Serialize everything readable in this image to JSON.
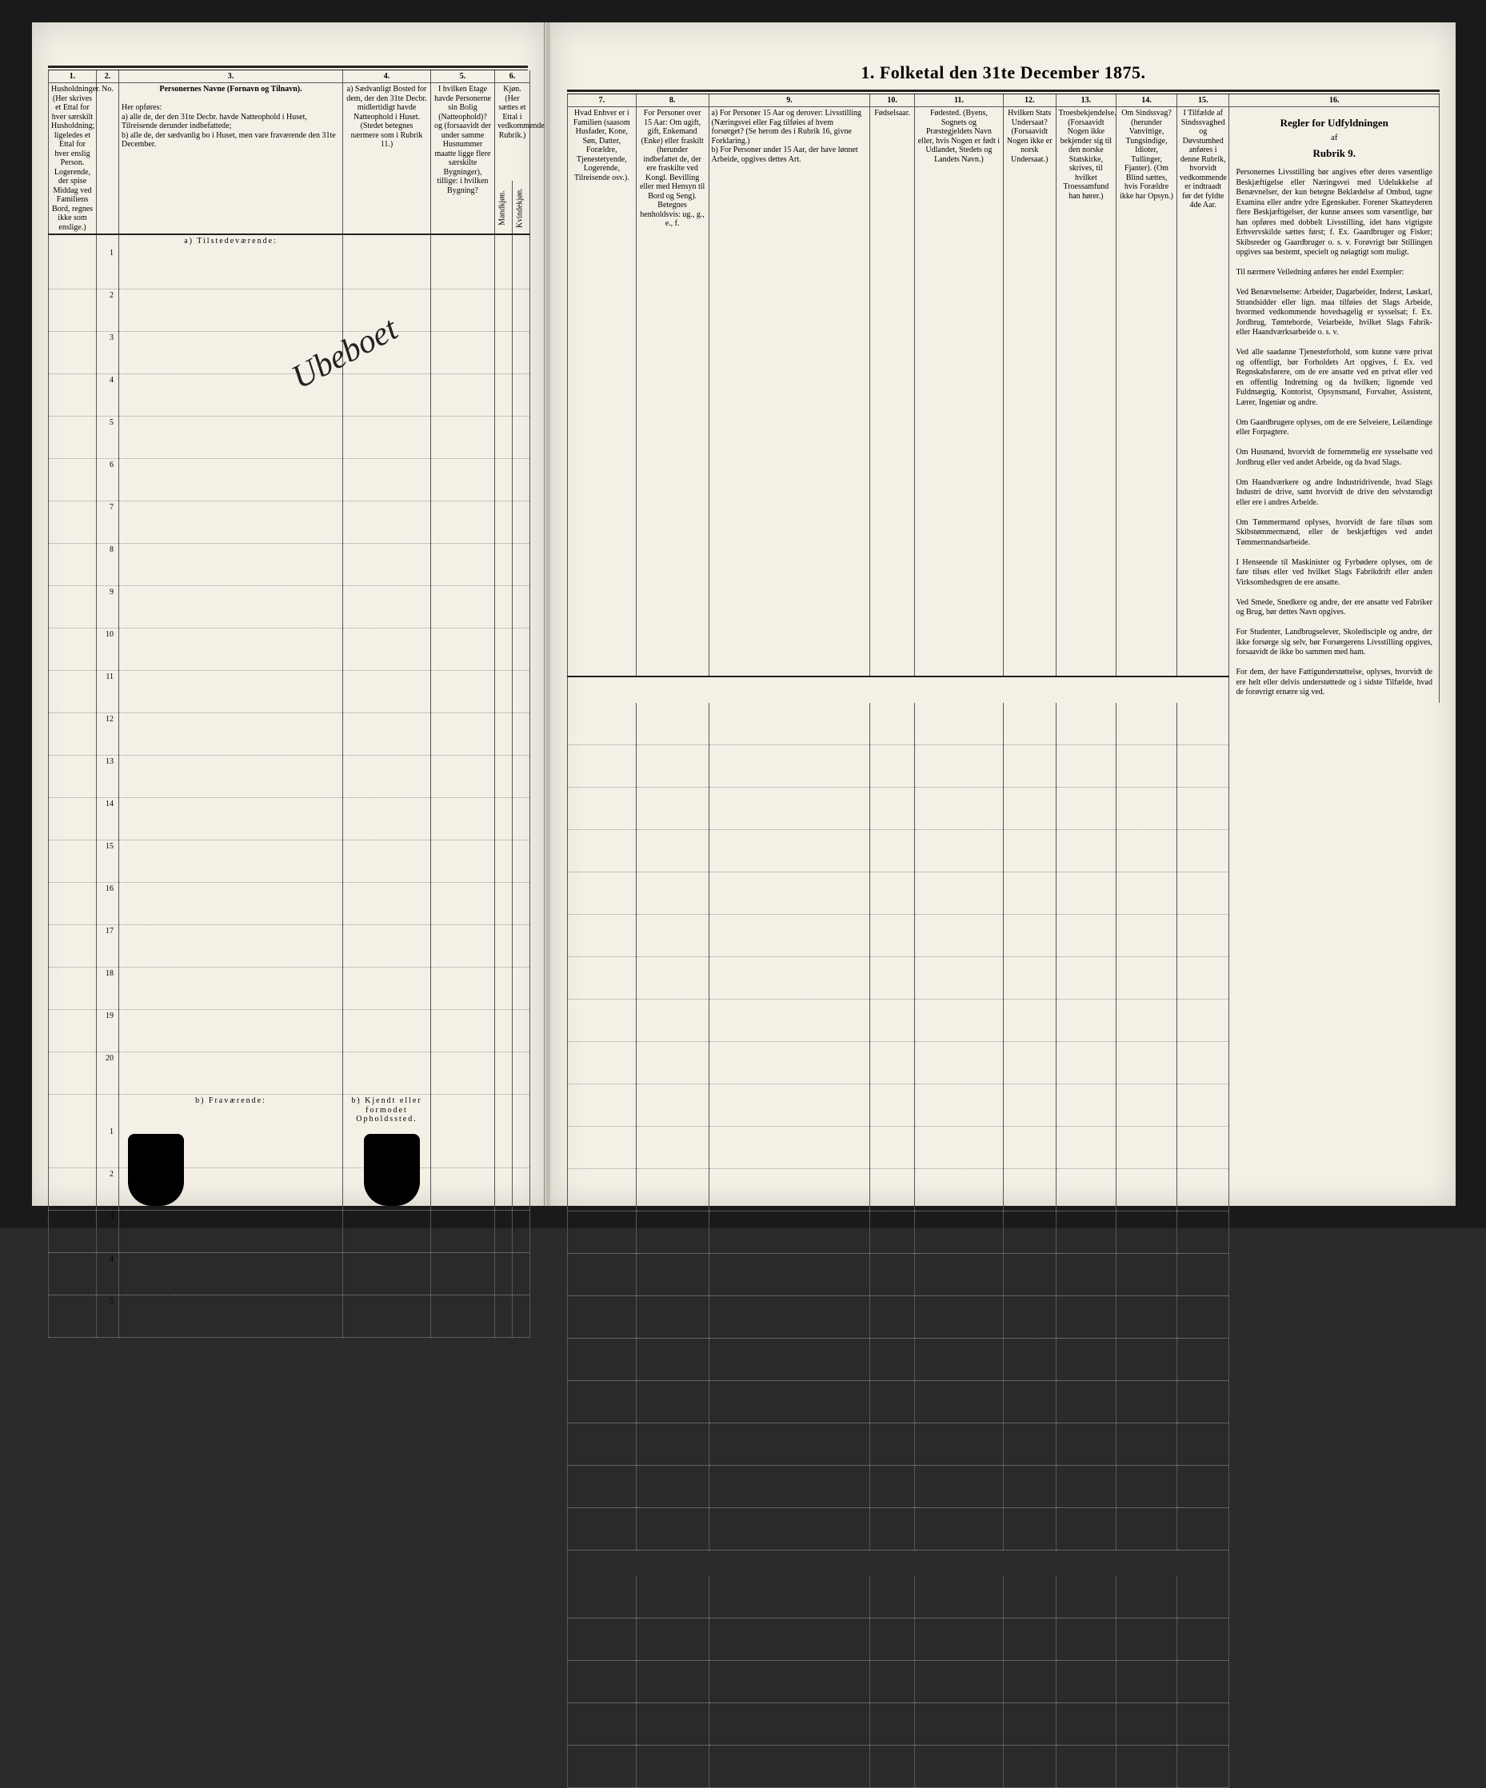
{
  "title": "1. Folketal den 31te December 1875.",
  "columns_left": {
    "1": "1.",
    "2": "2.",
    "3": "3.",
    "4": "4.",
    "5": "5.",
    "6": "6."
  },
  "columns_right": {
    "7": "7.",
    "8": "8.",
    "9": "9.",
    "10": "10.",
    "11": "11.",
    "12": "12.",
    "13": "13.",
    "14": "14.",
    "15": "15.",
    "16": "16."
  },
  "headers": {
    "col1": "Husholdninger. (Her skrives et Ettal for hver særskilt Husholdning; ligeledes et Ettal for hver enslig Person. Logerende, der spise Middag ved Familiens Bord, regnes ikke som enslige.)",
    "col2": "No.",
    "col3_title": "Personernes Navne (Fornavn og Tilnavn).",
    "col3_body": "Her opføres:\na) alle de, der den 31te Decbr. havde Natteophold i Huset, Tilreisende derunder indbefattede;\nb) alle de, der sædvanlig bo i Huset, men vare fraværende den 31te December.",
    "col4": "a) Sædvanligt Bosted for dem, der den 31te Decbr. midlertidigt havde Natteophold i Huset. (Stedet betegnes nærmere som i Rubrik 11.)",
    "col5": "I hvilken Etage havde Personerne sin Bolig (Natteophold)? og (forsaavidt der under samme Husnummer maatte ligge flere særskilte Bygninger), tillige: i hvilken Bygning?",
    "col6": "Kjøn. (Her sættes et Ettal i vedkommende Rubrik.)",
    "col6a": "Mandkjøn.",
    "col6b": "Kvindekjøn.",
    "col7": "Hvad Enhver er i Familien (saasom Husfader, Kone, Søn, Datter, Forældre, Tjenestetyende, Logerende, Tilreisende osv.).",
    "col8": "For Personer over 15 Aar: Om ugift, gift, Enkemand (Enke) eller fraskilt (herunder indbefattet de, der ere fraskilte ved Kongl. Bevilling eller med Hensyn til Bord og Seng). Betegnes henholdsvis: ug., g., e., f.",
    "col9": "a) For Personer 15 Aar og derover: Livsstilling (Næringsvei eller Fag tilføies af hvem forsørget? (Se herom des i Rubrik 16, givne Forklaring.)\nb) For Personer under 15 Aar, der have lønnet Arbeide, opgives dettes Art.",
    "col10": "Fødselsaar.",
    "col11": "Fødested. (Byens, Sognets og Præstegjeldets Navn eller, hvis Nogen er født i Udlandet, Stedets og Landets Navn.)",
    "col12": "Hvilken Stats Undersaat? (Forsaavidt Nogen ikke er norsk Undersaat.)",
    "col13": "Troesbekjendelse. (Forsaavidt Nogen ikke bekjender sig til den norske Statskirke, skrives, til hvilket Troessamfund han hører.)",
    "col14": "Om Sindssvag? (herunder Vanvittige, Tungsindige, Idioter, Tullinger, Fjanter). (Om Blind sættes, hvis Forældre ikke har Opsyn.)",
    "col15": "I Tilfælde af Sindssvaghed og Døvstumhed anføres i denne Rubrik, hvorvidt vedkommende er indtraadt før det fyldte 4de Aar.",
    "col16_title": "Regler for Udfyldningen",
    "col16_af": "af",
    "col16_rubrik": "Rubrik 9."
  },
  "sections": {
    "a": "a) Tilstedeværende:",
    "b": "b) Fraværende:",
    "b_col4": "b) Kjendt eller formodet Opholdssted."
  },
  "row_numbers_a": [
    "1",
    "2",
    "3",
    "4",
    "5",
    "6",
    "7",
    "8",
    "9",
    "10",
    "11",
    "12",
    "13",
    "14",
    "15",
    "16",
    "17",
    "18",
    "19",
    "20"
  ],
  "row_numbers_b": [
    "1",
    "2",
    "3",
    "4",
    "5"
  ],
  "handwriting": "Ubeboet",
  "rules_text": "Personernes Livsstilling bør angives efter deres væsentlige Beskjæftigelse eller Næringsvei med Udelukkelse af Benævnelser, der kun betegne Beklædelse af Ombud, tagne Examina eller andre ydre Egenskaber. Forener Skatteyderen flere Beskjæftigelser, der kunne ansees som væsentlige, bør han opføres med dobbelt Livsstilling, idet hans vigtigste Erhvervskilde sættes først; f. Ex. Gaardbruger og Fisker; Skibsreder og Gaardbruger o. s. v. Forøvrigt bør Stillingen opgives saa bestemt, specielt og nøiagtigt som muligt.\n\nTil nærmere Veiledning anføres her endel Exempler:\n\nVed Benævnelserne: Arbeider, Dagarbeider, Inderst, Løskarl, Strandsidder eller lign. maa tilføies det Slags Arbeide, hvormed vedkommende hovedsagelig er sysselsat; f. Ex. Jordbrug, Tømteborde, Veiarbeide, hvilket Slags Fabrik- eller Haandværksarbeide o. s. v.\n\nVed alle saadanne Tjenesteforhold, som kunne være privat og offentligt, bør Forholdets Art opgives, f. Ex. ved Regnskabsførere, om de ere ansatte ved en privat eller ved en offentlig Indretning og da hvilken; lignende ved Fuldmægtig, Kontorist, Opsynsmand, Forvalter, Assistent, Lærer, Ingeniør og andre.\n\nOm Gaardbrugere oplyses, om de ere Selveiere, Leilændinge eller Forpagtere.\n\nOm Husmænd, hvorvidt de fornemmelig ere sysselsatte ved Jordbrug eller ved andet Arbeide, og da hvad Slags.\n\nOm Haandværkere og andre Industridrivende, hvad Slags Industri de drive, samt hvorvidt de drive den selvstændigt eller ere i andres Arbeide.\n\nOm Tømmermænd oplyses, hvorvidt de fare tilsøs som Skibstømmermænd, eller de beskjæftiges ved andet Tømmermandsarbeide.\n\nI Henseende til Maskinister og Fyrbødere oplyses, om de fare tilsøs eller ved hvilket Slags Fabrikdrift eller anden Virksomhedsgren de ere ansatte.\n\nVed Smede, Snedkere og andre, der ere ansatte ved Fabriker og Brug, bør dettes Navn opgives.\n\nFor Studenter, Landbrugselever, Skoledisciple og andre, der ikke forsørge sig selv, bør Forsørgerens Livsstilling opgives, forsaavidt de ikke bo sammen med ham.\n\nFor dem, der have Fattigunderstøttelse, oplyses, hvorvidt de ere helt eller delvis understøttede og i sidste Tilfælde, hvad de forøvrigt ernære sig ved."
}
